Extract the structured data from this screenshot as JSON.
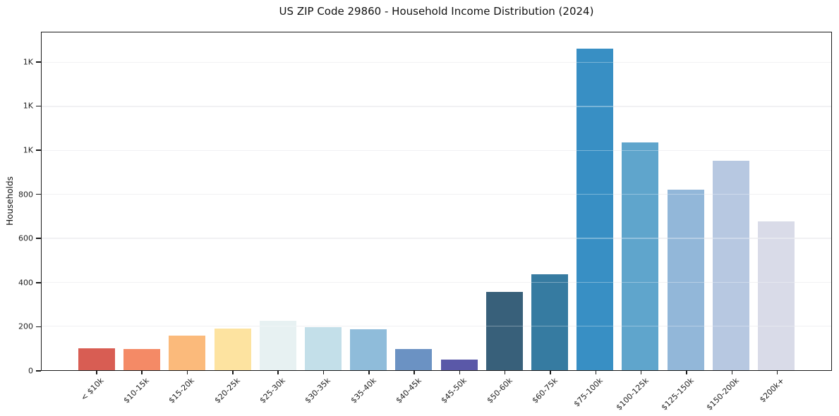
{
  "figure": {
    "background": "#ffffff",
    "spine_color": "#1a1a1a",
    "grid_color": "#ebebee",
    "grid_over_bar_color": "rgba(255,255,255,0.33)",
    "text_color": "#1a1a1a"
  },
  "chart_data": {
    "type": "bar",
    "title": "US ZIP Code 29860 - Household Income Distribution (2024)",
    "xlabel": "",
    "ylabel": "Households",
    "categories": [
      "< $10k",
      "$10-15k",
      "$15-20k",
      "$20-25k",
      "$25-30k",
      "$30-35k",
      "$35-40k",
      "$40-45k",
      "$45-50k",
      "$50-60k",
      "$60-75k",
      "$75-100k",
      "$100-125k",
      "$125-150k",
      "$150-200k",
      "$200k+"
    ],
    "values": [
      100,
      95,
      157,
      188,
      224,
      195,
      186,
      95,
      48,
      355,
      438,
      1464,
      1036,
      823,
      953,
      676
    ],
    "bar_colors": [
      "#d85d53",
      "#f48a66",
      "#fbba7b",
      "#fde3a0",
      "#e7f1f2",
      "#c3dfe9",
      "#8fbcda",
      "#6b92c3",
      "#5a58a8",
      "#38607a",
      "#367ba1",
      "#388fc4",
      "#5fa5cc",
      "#92b7d9",
      "#b7c8e1",
      "#d9dbe8"
    ],
    "ylim": [
      0,
      1537
    ],
    "yticks": {
      "values": [
        0,
        200,
        400,
        600,
        800,
        1000,
        1200,
        1400
      ],
      "labels": [
        "0",
        "200",
        "400",
        "600",
        "800",
        "1K",
        "1K",
        "1K"
      ]
    },
    "grid": "horizontal",
    "legend": false
  }
}
